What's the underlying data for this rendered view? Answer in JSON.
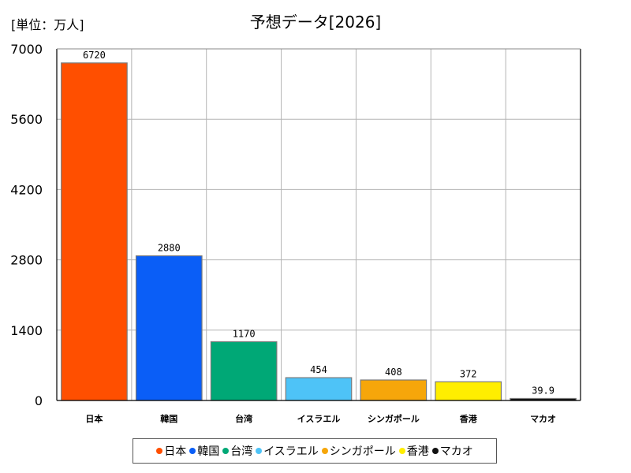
{
  "unit_label": "[単位：万人]",
  "chart_data": {
    "type": "bar",
    "title": "予想データ[2026]",
    "categories": [
      "日本",
      "韓国",
      "台湾",
      "イスラエル",
      "シンガポール",
      "香港",
      "マカオ"
    ],
    "values": [
      6720,
      2880,
      1170,
      454,
      408,
      372,
      39.9
    ],
    "data_labels": [
      "6720",
      "2880",
      "1170",
      "454",
      "408",
      "372",
      "39.9"
    ],
    "colors": [
      "#ff4f00",
      "#0a5ef7",
      "#00a876",
      "#4ec3f7",
      "#f6a60a",
      "#ffee00",
      "#111111"
    ],
    "ylim": [
      0,
      7000
    ],
    "yticks": [
      0,
      1400,
      2800,
      4200,
      5600,
      7000
    ],
    "ytick_labels": [
      "0",
      "1400",
      "2800",
      "4200",
      "5600",
      "7000"
    ],
    "grid": true,
    "legend": "bottom",
    "xlabel": "",
    "ylabel": ""
  }
}
